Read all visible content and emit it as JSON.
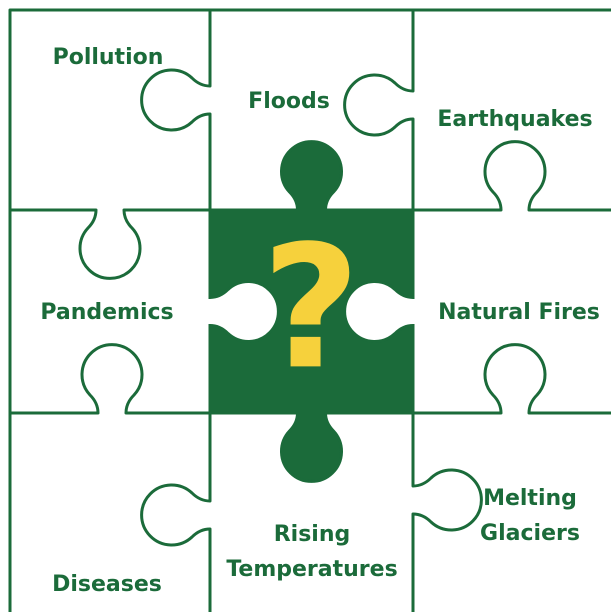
{
  "center_symbol": "?",
  "pieces": [
    {
      "lines": [
        "Pollution"
      ]
    },
    {
      "lines": [
        "Floods"
      ]
    },
    {
      "lines": [
        "Earthquakes"
      ]
    },
    {
      "lines": [
        "Pandemics"
      ]
    },
    {
      "lines": [
        "Natural Fires"
      ]
    },
    {
      "lines": [
        "Rising",
        "Temperatures"
      ]
    },
    {
      "lines": [
        "Melting",
        "Glaciers"
      ]
    },
    {
      "lines": [
        "Diseases"
      ]
    }
  ]
}
